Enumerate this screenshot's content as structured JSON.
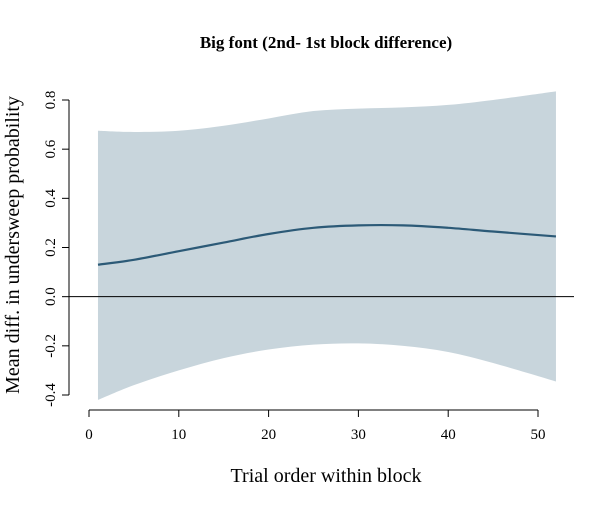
{
  "chart_data": {
    "type": "line",
    "title": "Big font (2nd- 1st block difference)",
    "xlabel": "Trial order within block",
    "ylabel": "Mean diff. in undersweep probability",
    "xlim": [
      0,
      52
    ],
    "ylim": [
      -0.45,
      0.85
    ],
    "x_ticks": [
      0,
      10,
      20,
      30,
      40,
      50
    ],
    "y_ticks": [
      -0.4,
      -0.2,
      0.0,
      0.2,
      0.4,
      0.6,
      0.8
    ],
    "x_tick_labels": [
      "0",
      "10",
      "20",
      "30",
      "40",
      "50"
    ],
    "y_tick_labels": [
      "-0.4",
      "-0.2",
      "0.0",
      "0.2",
      "0.4",
      "0.6",
      "0.8"
    ],
    "reference_line_y": 0.0,
    "grid": false,
    "colors": {
      "line": "#2c5a77",
      "band": "#c8d5dc",
      "reference": "#000000"
    },
    "series": [
      {
        "x": [
          1,
          5,
          10,
          15,
          20,
          25,
          30,
          35,
          40,
          45,
          52
        ],
        "values": [
          0.13,
          0.15,
          0.185,
          0.22,
          0.255,
          0.28,
          0.29,
          0.29,
          0.28,
          0.265,
          0.245
        ],
        "lower": [
          -0.42,
          -0.36,
          -0.3,
          -0.25,
          -0.215,
          -0.195,
          -0.19,
          -0.2,
          -0.225,
          -0.27,
          -0.345
        ],
        "upper": [
          0.675,
          0.67,
          0.675,
          0.695,
          0.725,
          0.755,
          0.765,
          0.77,
          0.78,
          0.8,
          0.835
        ]
      }
    ]
  }
}
